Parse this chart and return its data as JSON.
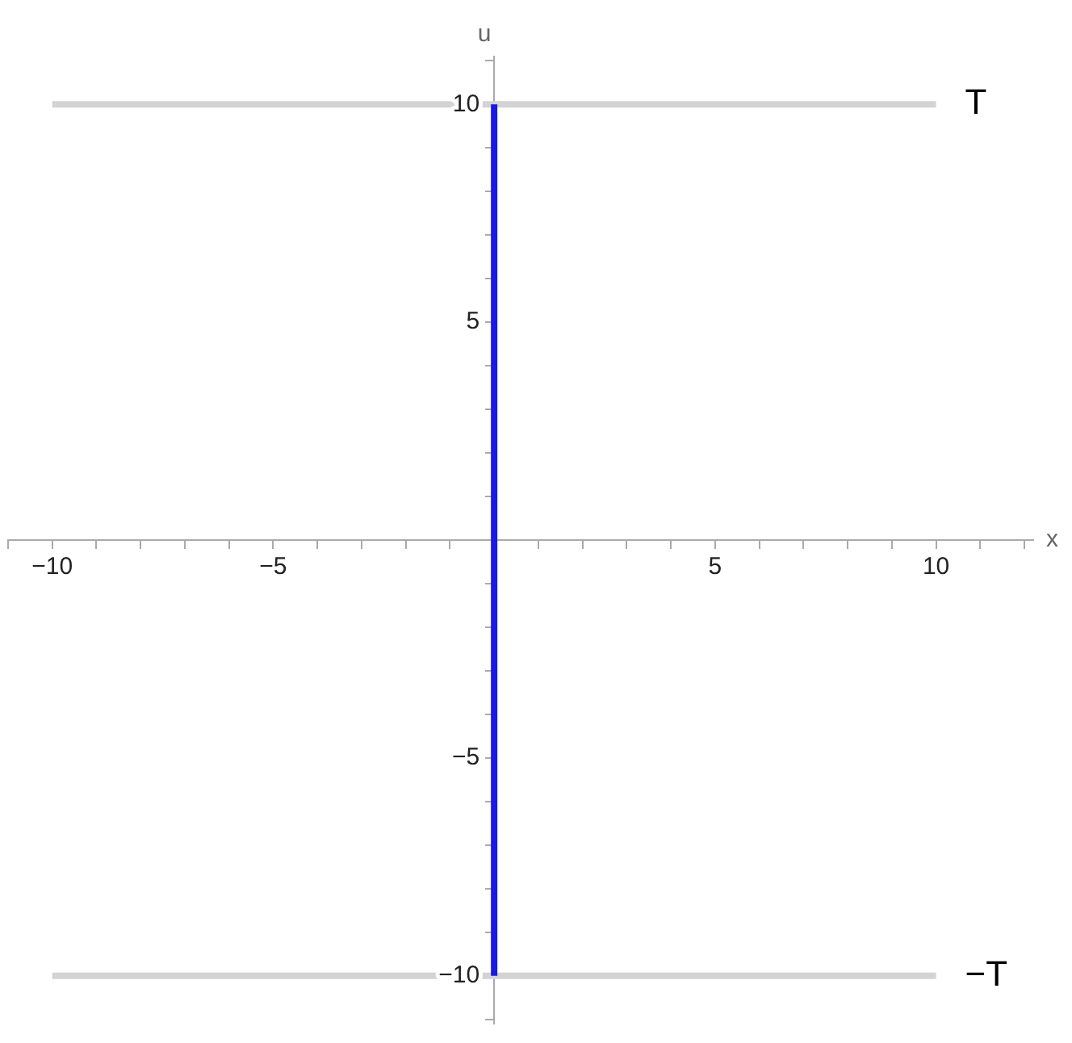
{
  "chart_data": {
    "type": "line",
    "xlabel": "x",
    "ylabel": "u",
    "xlim": [
      -11,
      12.2
    ],
    "ylim": [
      -11.1,
      11.1
    ],
    "marker": "none",
    "line_style": "solid",
    "grid": false,
    "xticks": [
      {
        "value": -11,
        "label": null
      },
      {
        "value": -10,
        "label": "−10"
      },
      {
        "value": -9,
        "label": null
      },
      {
        "value": -8,
        "label": null
      },
      {
        "value": -7,
        "label": null
      },
      {
        "value": -6,
        "label": null
      },
      {
        "value": -5,
        "label": "−5"
      },
      {
        "value": -4,
        "label": null
      },
      {
        "value": -3,
        "label": null
      },
      {
        "value": -2,
        "label": null
      },
      {
        "value": -1,
        "label": null
      },
      {
        "value": 1,
        "label": null
      },
      {
        "value": 2,
        "label": null
      },
      {
        "value": 3,
        "label": null
      },
      {
        "value": 4,
        "label": null
      },
      5,
      {
        "value": 6,
        "label": null
      },
      {
        "value": 7,
        "label": null
      },
      {
        "value": 8,
        "label": null
      },
      {
        "value": 9,
        "label": null
      },
      10,
      {
        "value": 11,
        "label": null
      },
      {
        "value": 12,
        "label": null
      }
    ],
    "yticks": [
      {
        "value": -11,
        "label": null
      },
      {
        "value": -10,
        "label": "−10"
      },
      {
        "value": -9,
        "label": null
      },
      {
        "value": -8,
        "label": null
      },
      {
        "value": -7,
        "label": null
      },
      {
        "value": -6,
        "label": null
      },
      {
        "value": -5,
        "label": "−5"
      },
      {
        "value": -4,
        "label": null
      },
      {
        "value": -3,
        "label": null
      },
      {
        "value": -2,
        "label": null
      },
      {
        "value": -1,
        "label": null
      },
      {
        "value": 1,
        "label": null
      },
      {
        "value": 2,
        "label": null
      },
      {
        "value": 3,
        "label": null
      },
      {
        "value": 4,
        "label": null
      },
      5,
      {
        "value": 6,
        "label": null
      },
      {
        "value": 7,
        "label": null
      },
      {
        "value": 8,
        "label": null
      },
      {
        "value": 9,
        "label": null
      },
      10,
      {
        "value": 11,
        "label": null
      }
    ],
    "series": [
      {
        "name": "T",
        "color": "#d3d3d3",
        "x": [
          -10,
          10
        ],
        "values": [
          10,
          10
        ]
      },
      {
        "name": "−T",
        "color": "#d3d3d3",
        "x": [
          -10,
          10
        ],
        "values": [
          -10,
          -10
        ]
      },
      {
        "color": "#1a1ae6",
        "x": [
          0,
          0
        ],
        "values": [
          -10,
          10
        ]
      }
    ]
  }
}
